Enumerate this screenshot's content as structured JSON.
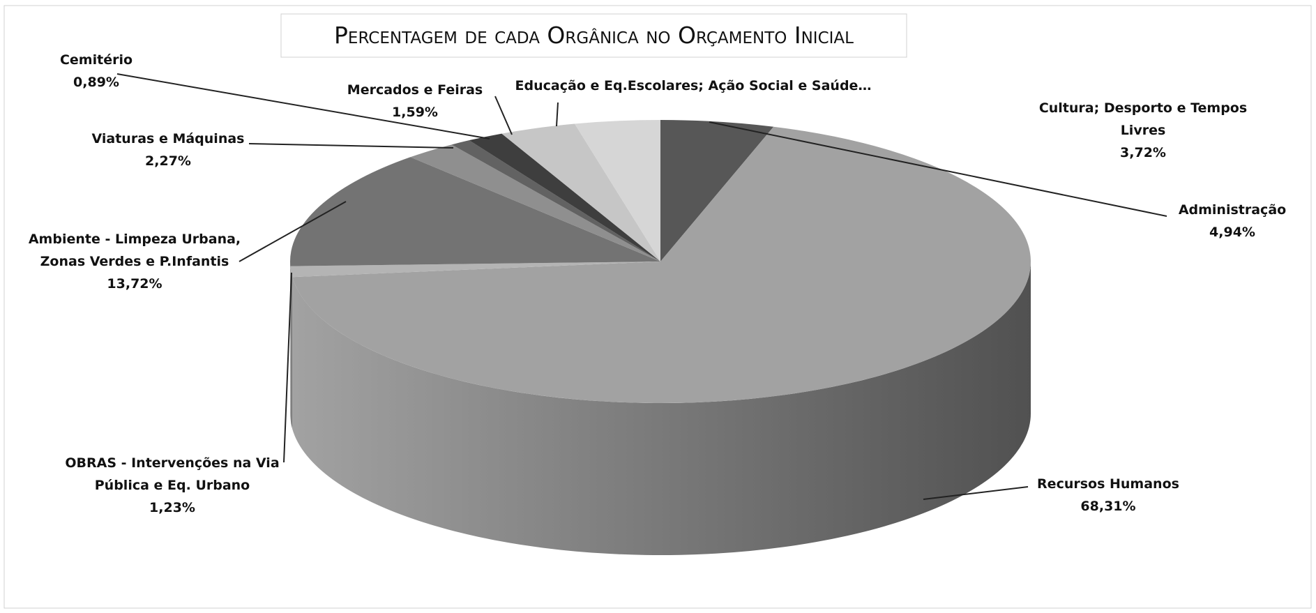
{
  "chart_data": {
    "type": "pie3d",
    "title": "Percentagem de cada Orgânica no Orçamento Inicial",
    "categories": [
      "Administração",
      "Recursos Humanos",
      "OBRAS - Intervenções na Via Pública e Eq. Urbano",
      "Ambiente - Limpeza Urbana, Zonas Verdes e P.Infantis",
      "Viaturas e Máquinas",
      "Cemitério",
      "Mercados e Feiras",
      "Educação e Eq.Escolares; Ação Social e Saúde…",
      "Cultura; Desporto e Tempos Livres"
    ],
    "values": [
      4.94,
      68.31,
      1.23,
      13.72,
      2.27,
      0.89,
      1.59,
      3.33,
      3.72
    ],
    "value_labels": [
      "4,94%",
      "68,31%",
      "1,23%",
      "13,72%",
      "2,27%",
      "0,89%",
      "1,59%",
      null,
      "3,72%"
    ],
    "colors": [
      "#575757",
      "#a2a2a2",
      "#b4b4b4",
      "#737373",
      "#8f8f8f",
      "#626262",
      "#3e3e3e",
      "#c6c6c6",
      "#d6d6d6"
    ]
  }
}
